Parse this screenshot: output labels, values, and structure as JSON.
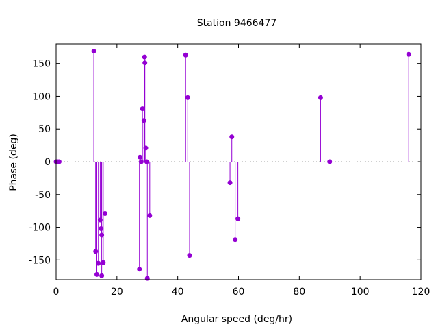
{
  "chart_data": {
    "type": "scatter",
    "style": "impulses-with-points",
    "title": "Station 9466477",
    "xlabel": "Angular speed (deg/hr)",
    "ylabel": "Phase (deg)",
    "xlim": [
      0,
      120
    ],
    "ylim": [
      -180,
      180
    ],
    "xticks": [
      0,
      20,
      40,
      60,
      80,
      100,
      120
    ],
    "yticks": [
      -150,
      -100,
      -50,
      0,
      50,
      100,
      150
    ],
    "grid": false,
    "zero_line": "dotted",
    "series_color": "#9400d3",
    "points": [
      {
        "x": 0.0,
        "y": 0
      },
      {
        "x": 0.5,
        "y": 0
      },
      {
        "x": 1.0,
        "y": 0
      },
      {
        "x": 12.4,
        "y": 169
      },
      {
        "x": 13.0,
        "y": -137
      },
      {
        "x": 13.4,
        "y": -172
      },
      {
        "x": 13.9,
        "y": -155
      },
      {
        "x": 14.5,
        "y": -89
      },
      {
        "x": 14.8,
        "y": -102
      },
      {
        "x": 15.0,
        "y": -112
      },
      {
        "x": 15.0,
        "y": -174
      },
      {
        "x": 15.5,
        "y": -154
      },
      {
        "x": 16.1,
        "y": -79
      },
      {
        "x": 27.4,
        "y": -164
      },
      {
        "x": 27.6,
        "y": 7
      },
      {
        "x": 28.0,
        "y": 0
      },
      {
        "x": 28.4,
        "y": 81
      },
      {
        "x": 28.9,
        "y": 63
      },
      {
        "x": 29.1,
        "y": 160
      },
      {
        "x": 29.2,
        "y": 151
      },
      {
        "x": 29.5,
        "y": 21
      },
      {
        "x": 29.8,
        "y": 0
      },
      {
        "x": 30.0,
        "y": -178
      },
      {
        "x": 30.8,
        "y": -82
      },
      {
        "x": 42.6,
        "y": 163
      },
      {
        "x": 43.3,
        "y": 98
      },
      {
        "x": 43.9,
        "y": -143
      },
      {
        "x": 57.2,
        "y": -32
      },
      {
        "x": 57.8,
        "y": 38
      },
      {
        "x": 58.9,
        "y": -119
      },
      {
        "x": 59.8,
        "y": -87
      },
      {
        "x": 87.0,
        "y": 98
      },
      {
        "x": 90.0,
        "y": 0
      },
      {
        "x": 116.0,
        "y": 164
      }
    ]
  }
}
